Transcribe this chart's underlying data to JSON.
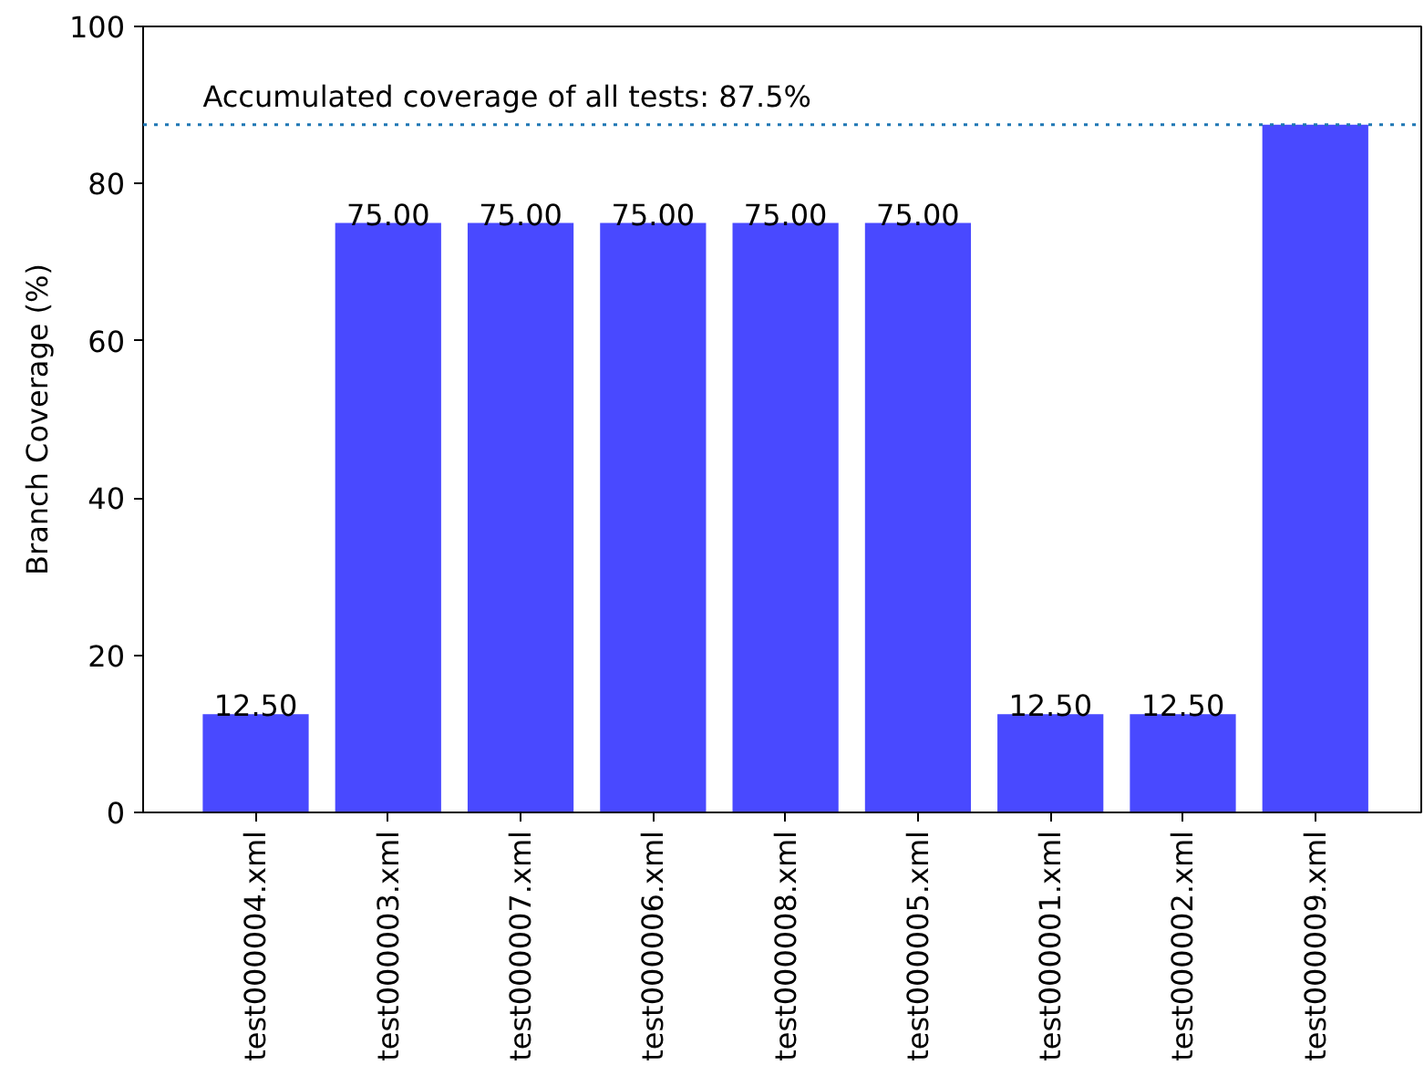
{
  "chart_data": {
    "type": "bar",
    "ylabel": "Branch Coverage (%)",
    "categories": [
      "test000004.xml",
      "test000003.xml",
      "test000007.xml",
      "test000006.xml",
      "test000008.xml",
      "test000005.xml",
      "test000001.xml",
      "test000002.xml",
      "test000009.xml"
    ],
    "values": [
      12.5,
      75,
      75,
      75,
      75,
      75,
      12.5,
      12.5,
      87.5
    ],
    "value_labels": [
      "12.50",
      "75.00",
      "75.00",
      "75.00",
      "75.00",
      "75.00",
      "12.50",
      "12.50",
      null
    ],
    "color": "#4949ff",
    "ylim": [
      0,
      100
    ],
    "yticks": [
      0,
      20,
      40,
      60,
      80,
      100
    ],
    "ref_lines": [
      {
        "axis": "y",
        "value": 87.5,
        "label": "Accumulated coverage of all tests: 87.5%",
        "color": "#1f77b4",
        "line_style": "dotted"
      }
    ],
    "grid": false
  }
}
